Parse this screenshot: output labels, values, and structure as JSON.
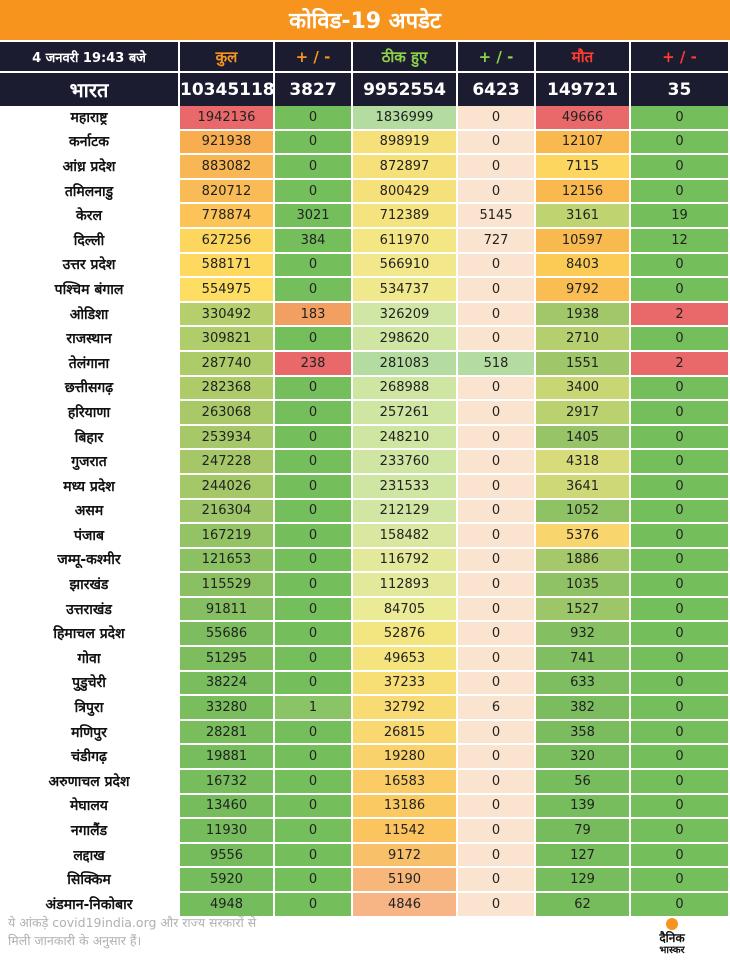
{
  "title": "कोविड-19 अपडेट",
  "headers": [
    "4 जनवरी 19:43 बजे",
    "कुल",
    "+ / -",
    "ठीक हुए",
    "+ / -",
    "मौत",
    "+ / -"
  ],
  "india": {
    "name": "भारत",
    "total": "10345118",
    "total_change": "3827",
    "recovered": "9952554",
    "recovered_change": "6423",
    "deaths": "149721",
    "deaths_change": "35"
  },
  "rows": [
    [
      "महाराष्ट्र",
      "1942136",
      "0",
      "1836999",
      "0",
      "49666",
      "0"
    ],
    [
      "कर्नाटक",
      "921938",
      "0",
      "898919",
      "0",
      "12107",
      "0"
    ],
    [
      "आंध्र प्रदेश",
      "883082",
      "0",
      "872897",
      "0",
      "7115",
      "0"
    ],
    [
      "तमिलनाडु",
      "820712",
      "0",
      "800429",
      "0",
      "12156",
      "0"
    ],
    [
      "केरल",
      "778874",
      "3021",
      "712389",
      "5145",
      "3161",
      "19"
    ],
    [
      "दिल्ली",
      "627256",
      "384",
      "611970",
      "727",
      "10597",
      "12"
    ],
    [
      "उत्तर प्रदेश",
      "588171",
      "0",
      "566910",
      "0",
      "8403",
      "0"
    ],
    [
      "पश्चिम बंगाल",
      "554975",
      "0",
      "534737",
      "0",
      "9792",
      "0"
    ],
    [
      "ओडिशा",
      "330492",
      "183",
      "326209",
      "0",
      "1938",
      "2"
    ],
    [
      "राजस्थान",
      "309821",
      "0",
      "298620",
      "0",
      "2710",
      "0"
    ],
    [
      "तेलंगाना",
      "287740",
      "238",
      "281083",
      "518",
      "1551",
      "2"
    ],
    [
      "छत्तीसगढ़",
      "282368",
      "0",
      "268988",
      "0",
      "3400",
      "0"
    ],
    [
      "हरियाणा",
      "263068",
      "0",
      "257261",
      "0",
      "2917",
      "0"
    ],
    [
      "बिहार",
      "253934",
      "0",
      "248210",
      "0",
      "1405",
      "0"
    ],
    [
      "गुजरात",
      "247228",
      "0",
      "233760",
      "0",
      "4318",
      "0"
    ],
    [
      "मध्य प्रदेश",
      "244026",
      "0",
      "231533",
      "0",
      "3641",
      "0"
    ],
    [
      "असम",
      "216304",
      "0",
      "212129",
      "0",
      "1052",
      "0"
    ],
    [
      "पंजाब",
      "167219",
      "0",
      "158482",
      "0",
      "5376",
      "0"
    ],
    [
      "जम्मू-कश्मीर",
      "121653",
      "0",
      "116792",
      "0",
      "1886",
      "0"
    ],
    [
      "झारखंड",
      "115529",
      "0",
      "112893",
      "0",
      "1035",
      "0"
    ],
    [
      "उत्तराखंड",
      "91811",
      "0",
      "84705",
      "0",
      "1527",
      "0"
    ],
    [
      "हिमाचल प्रदेश",
      "55686",
      "0",
      "52876",
      "0",
      "932",
      "0"
    ],
    [
      "गोवा",
      "51295",
      "0",
      "49653",
      "0",
      "741",
      "0"
    ],
    [
      "पुडुचेरी",
      "38224",
      "0",
      "37233",
      "0",
      "633",
      "0"
    ],
    [
      "त्रिपुरा",
      "33280",
      "1",
      "32792",
      "6",
      "382",
      "0"
    ],
    [
      "मणिपुर",
      "28281",
      "0",
      "26815",
      "0",
      "358",
      "0"
    ],
    [
      "चंडीगढ़",
      "19881",
      "0",
      "19280",
      "0",
      "320",
      "0"
    ],
    [
      "अरुणाचल प्रदेश",
      "16732",
      "0",
      "16583",
      "0",
      "56",
      "0"
    ],
    [
      "मेघालय",
      "13460",
      "0",
      "13186",
      "0",
      "139",
      "0"
    ],
    [
      "नगालैंड",
      "11930",
      "0",
      "11542",
      "0",
      "79",
      "0"
    ],
    [
      "लद्दाख",
      "9556",
      "0",
      "9172",
      "0",
      "127",
      "0"
    ],
    [
      "सिक्किम",
      "5920",
      "0",
      "5190",
      "0",
      "129",
      "0"
    ],
    [
      "अंडमान-निकोबार",
      "4948",
      "0",
      "4846",
      "0",
      "62",
      "0"
    ]
  ],
  "cell_colors": [
    [
      "#e9696a",
      "#74bf5b",
      "#b5dca0",
      "#fbe4cf",
      "#e9696a",
      "#74bf5b"
    ],
    [
      "#f8ae50",
      "#74bf5b",
      "#f6e07a",
      "#fbe4cf",
      "#f9b94f",
      "#74bf5b"
    ],
    [
      "#f8b655",
      "#74bf5b",
      "#f6e07a",
      "#fbe4cf",
      "#fcd65e",
      "#74bf5b"
    ],
    [
      "#f9bb56",
      "#74bf5b",
      "#f6e07a",
      "#fbe4cf",
      "#f9b94f",
      "#74bf5b"
    ],
    [
      "#fbc358",
      "#74bf5b",
      "#f5e380",
      "#fbe4cf",
      "#bfd371",
      "#74bf5b"
    ],
    [
      "#fcd65d",
      "#74bf5b",
      "#f5e684",
      "#fbe4cf",
      "#f8ba4f",
      "#74bf5b"
    ],
    [
      "#fdd960",
      "#74bf5b",
      "#f2e78a",
      "#fbe4cf",
      "#fbcb56",
      "#74bf5b"
    ],
    [
      "#fdde62",
      "#74bf5b",
      "#f0e88c",
      "#fbe4cf",
      "#fabd52",
      "#74bf5b"
    ],
    [
      "#b5cf6c",
      "#f2a061",
      "#cfe6a4",
      "#fbe4cf",
      "#a2c769",
      "#e9696a"
    ],
    [
      "#b0cd6b",
      "#74bf5b",
      "#cfe5a2",
      "#fbe4cf",
      "#b6cf6e",
      "#74bf5b"
    ],
    [
      "#aecb6a",
      "#e9696a",
      "#b5dca0",
      "#b5dca0",
      "#9fc668",
      "#e9696a"
    ],
    [
      "#aecb6a",
      "#74bf5b",
      "#cfe5a2",
      "#fbe4cf",
      "#c8d674",
      "#74bf5b"
    ],
    [
      "#a9c969",
      "#74bf5b",
      "#cfe5a2",
      "#fbe4cf",
      "#bad170",
      "#74bf5b"
    ],
    [
      "#a7c869",
      "#74bf5b",
      "#cfe5a2",
      "#fbe4cf",
      "#96c466",
      "#74bf5b"
    ],
    [
      "#a5c768",
      "#74bf5b",
      "#cfe5a2",
      "#fbe4cf",
      "#d8db79",
      "#74bf5b"
    ],
    [
      "#a4c768",
      "#74bf5b",
      "#cfe5a2",
      "#fbe4cf",
      "#cfd876",
      "#74bf5b"
    ],
    [
      "#9ec567",
      "#74bf5b",
      "#d2e6a3",
      "#fbe4cf",
      "#8fc265",
      "#74bf5b"
    ],
    [
      "#94c365",
      "#74bf5b",
      "#d9e7a1",
      "#fbe4cf",
      "#f8d56d",
      "#74bf5b"
    ],
    [
      "#8bc063",
      "#74bf5b",
      "#e3e89b",
      "#fbe4cf",
      "#a5c86a",
      "#74bf5b"
    ],
    [
      "#8abf62",
      "#74bf5b",
      "#e4e89a",
      "#fbe4cf",
      "#8fc265",
      "#74bf5b"
    ],
    [
      "#85bf61",
      "#74bf5b",
      "#ebea95",
      "#fbe4cf",
      "#9dc668",
      "#74bf5b"
    ],
    [
      "#7ebd5f",
      "#74bf5b",
      "#f3e57f",
      "#fbe4cf",
      "#84bf62",
      "#74bf5b"
    ],
    [
      "#7dbd5e",
      "#74bf5b",
      "#f5e37d",
      "#fbe4cf",
      "#80be61",
      "#74bf5b"
    ],
    [
      "#7abd5e",
      "#74bf5b",
      "#f7df76",
      "#fbe4cf",
      "#7ebd60",
      "#74bf5b"
    ],
    [
      "#79bd5d",
      "#8bc466",
      "#f8dc73",
      "#fbe4cf",
      "#7bbd5e",
      "#74bf5b"
    ],
    [
      "#79bd5d",
      "#74bf5b",
      "#f9d870",
      "#fbe4cf",
      "#7bbd5e",
      "#74bf5b"
    ],
    [
      "#77bc5d",
      "#74bf5b",
      "#fad26b",
      "#fbe4cf",
      "#7abd5e",
      "#74bf5b"
    ],
    [
      "#77bc5d",
      "#74bf5b",
      "#fbcc66",
      "#fbe4cf",
      "#77bc5d",
      "#74bf5b"
    ],
    [
      "#76bc5c",
      "#74bf5b",
      "#fbc962",
      "#fbe4cf",
      "#77bc5d",
      "#74bf5b"
    ],
    [
      "#76bc5c",
      "#74bf5b",
      "#fbc45f",
      "#fbe4cf",
      "#76bc5c",
      "#74bf5b"
    ],
    [
      "#76bc5c",
      "#74bf5b",
      "#f9c06a",
      "#fbe4cf",
      "#77bc5d",
      "#74bf5b"
    ],
    [
      "#75bc5c",
      "#74bf5b",
      "#f7b77a",
      "#fbe4cf",
      "#77bc5d",
      "#74bf5b"
    ],
    [
      "#75bc5c",
      "#74bf5b",
      "#f7b485",
      "#fbe4cf",
      "#76bc5c",
      "#74bf5b"
    ]
  ],
  "footer": {
    "line1": "ये आंकड़े covid19india.org और राज्य सरकारों से",
    "line2": "मिली जानकारी के अनुसार हैं।"
  },
  "logo": {
    "line1": "दैनिक",
    "line2": "भास्कर"
  },
  "colors": {
    "title_bg": "#f7941d",
    "header_bg": "#1c1c30",
    "accent_orange": "#f7941d",
    "accent_green": "#8ed14a",
    "accent_red": "#ff3b30"
  }
}
